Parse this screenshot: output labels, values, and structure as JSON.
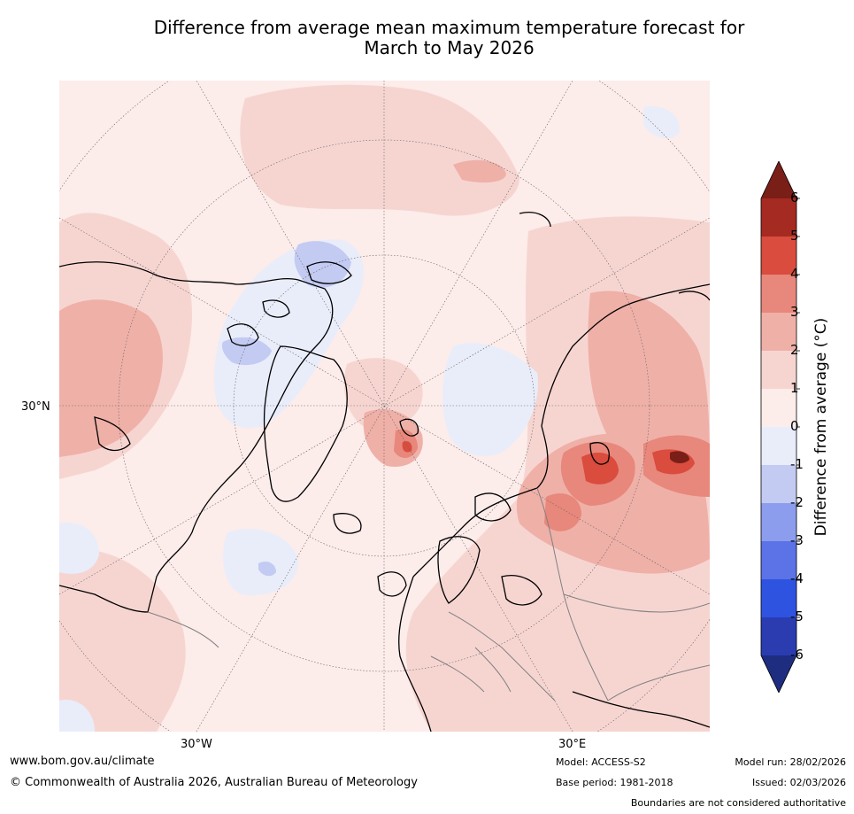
{
  "title_line1": "Difference from average mean maximum temperature forecast for",
  "title_line2": "March to May 2026",
  "map": {
    "projection": "north-polar-stereographic",
    "lon_labels": [
      "30°W",
      "30°E"
    ],
    "lat_labels": [
      "30°N"
    ],
    "features": [
      "coastlines",
      "country-boundaries",
      "graticule"
    ]
  },
  "colorbar": {
    "label": "Difference from average ($^\\circ$C)",
    "label_text": "Difference from average (°C)",
    "ticks": [
      "6",
      "5",
      "4",
      "3",
      "2",
      "1",
      "0",
      "-1",
      "-2",
      "-3",
      "-4",
      "-5",
      "-6"
    ],
    "levels": [
      6,
      5,
      4,
      3,
      2,
      1,
      0,
      -1,
      -2,
      -3,
      -4,
      -5,
      -6
    ],
    "colors_top_to_bottom": [
      "#a52a22",
      "#d94c3e",
      "#e8877b",
      "#efb0a8",
      "#f6d5d1",
      "#fcecea",
      "#e9edfa",
      "#c3cbf3",
      "#8d9ded",
      "#5b73e6",
      "#2f53e1",
      "#2a3cb0"
    ],
    "over_color": "#7a1e18",
    "under_color": "#1e2d80"
  },
  "footer": {
    "url": "www.bom.gov.au/climate",
    "copyright": "© Commonwealth of Australia 2026, Australian Bureau of Meteorology",
    "model": "Model: ACCESS-S2",
    "base_period": "Base period: 1981-2018",
    "model_run": "Model run: 28/02/2026",
    "issued": "Issued: 02/03/2026",
    "disclaimer": "Boundaries are not considered authoritative"
  }
}
